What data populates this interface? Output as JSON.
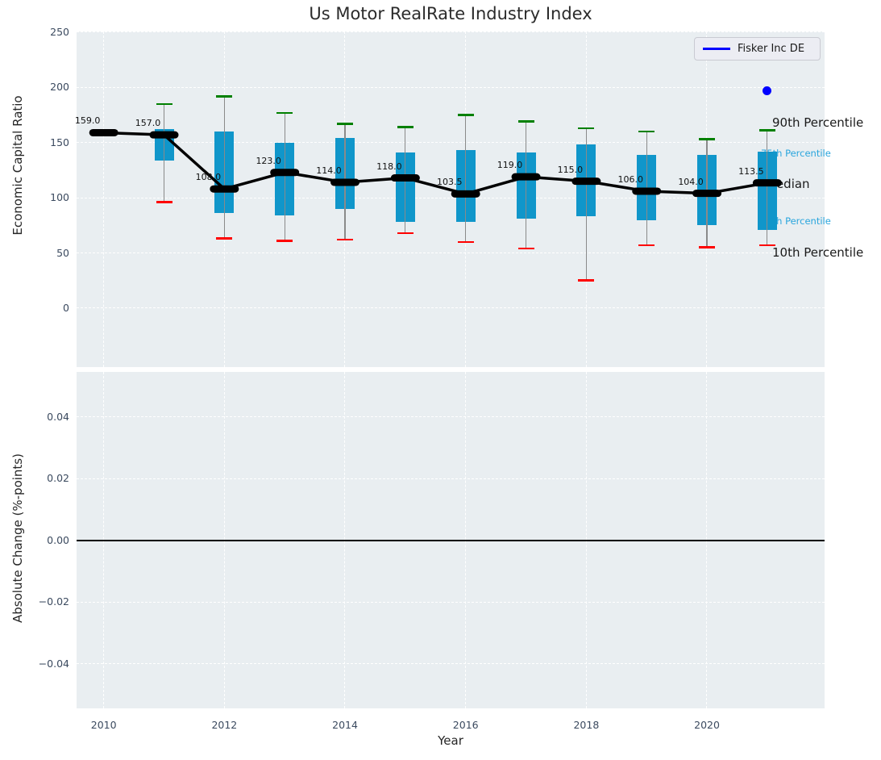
{
  "colors": {
    "box": "#1096ca",
    "whisker": "#8a8a8a",
    "cap_high": "#008000",
    "cap_low": "#ff0000",
    "median": "#000000",
    "highlight": "#0000ff",
    "panel_bg": "#e9eef1",
    "grid": "#ffffff",
    "tick_label": "#3b4a5f",
    "text": "#262626",
    "cyan_label": "#29a5dd",
    "legend_bg": "#ecedf3",
    "legend_border": "#c9cad2",
    "zero_line": "#000000"
  },
  "chart_data": [
    {
      "type": "box",
      "title": "Us Motor RealRate Industry Index",
      "ylabel": "Economic Capital Ratio",
      "xlabel": "Year",
      "grid": true,
      "legend": {
        "position": "upper right",
        "entries": [
          {
            "label": "Fisker Inc DE",
            "color": "#0000ff"
          }
        ]
      },
      "ylim": [
        -53.4,
        250.7
      ],
      "xlim": [
        2009.55,
        2021.95
      ],
      "yticks": [
        {
          "label": "250",
          "value": 250
        },
        {
          "label": "200",
          "value": 200
        },
        {
          "label": "150",
          "value": 150
        },
        {
          "label": "100",
          "value": 100
        },
        {
          "label": "50",
          "value": 50
        },
        {
          "label": "0",
          "value": 0
        }
      ],
      "xticks": [
        {
          "label": "2010",
          "value": 2010
        },
        {
          "label": "2012",
          "value": 2012
        },
        {
          "label": "2014",
          "value": 2014
        },
        {
          "label": "2016",
          "value": 2016
        },
        {
          "label": "2018",
          "value": 2018
        },
        {
          "label": "2020",
          "value": 2020
        }
      ],
      "boxes": [
        {
          "year": 2010,
          "p10": 157,
          "p25": 158,
          "median": 159,
          "p75": 160,
          "p90": 161.5,
          "label": "159.0"
        },
        {
          "year": 2011,
          "p10": 96,
          "p25": 134,
          "median": 157,
          "p75": 162,
          "p90": 185,
          "label": "157.0"
        },
        {
          "year": 2012,
          "p10": 63,
          "p25": 86,
          "median": 108,
          "p75": 160,
          "p90": 192,
          "label": "108.0"
        },
        {
          "year": 2013,
          "p10": 61,
          "p25": 84,
          "median": 123,
          "p75": 150,
          "p90": 177,
          "label": "123.0"
        },
        {
          "year": 2014,
          "p10": 62,
          "p25": 90,
          "median": 114,
          "p75": 154,
          "p90": 167,
          "label": "114.0"
        },
        {
          "year": 2015,
          "p10": 68,
          "p25": 78,
          "median": 118,
          "p75": 141,
          "p90": 164,
          "label": "118.0"
        },
        {
          "year": 2016,
          "p10": 60,
          "p25": 78,
          "median": 103.5,
          "p75": 143,
          "p90": 175,
          "label": "103.5"
        },
        {
          "year": 2017,
          "p10": 54,
          "p25": 81,
          "median": 119,
          "p75": 141,
          "p90": 169,
          "label": "119.0"
        },
        {
          "year": 2018,
          "p10": 25,
          "p25": 83,
          "median": 115,
          "p75": 148,
          "p90": 163,
          "label": "115.0"
        },
        {
          "year": 2019,
          "p10": 57,
          "p25": 80,
          "median": 106,
          "p75": 139,
          "p90": 160,
          "label": "106.0"
        },
        {
          "year": 2020,
          "p10": 55,
          "p25": 75,
          "median": 104,
          "p75": 139,
          "p90": 153,
          "label": "104.0"
        },
        {
          "year": 2021,
          "p10": 57,
          "p25": 71,
          "median": 113.5,
          "p75": 142,
          "p90": 161,
          "label": "113.5"
        }
      ],
      "highlight_point": {
        "series": "Fisker Inc DE",
        "year": 2021,
        "value": 197,
        "color": "#0000ff"
      },
      "percentile_labels": [
        {
          "text": "90th Percentile",
          "anchor_value": 161,
          "style": "large"
        },
        {
          "text": "75th Percentile",
          "anchor_value": 143,
          "style": "small"
        },
        {
          "text": "Median",
          "anchor_value": 113.5,
          "style": "large"
        },
        {
          "text": "25th Percentile",
          "anchor_value": 78,
          "style": "small"
        },
        {
          "text": "10th Percentile",
          "anchor_value": 57,
          "style": "large"
        }
      ]
    },
    {
      "type": "line",
      "ylabel": "Absolute Change (%-points)",
      "xlabel": "Year",
      "grid": true,
      "ylim": [
        -0.0545,
        0.0546
      ],
      "yticks": [
        {
          "label": "0.04",
          "value": 0.04
        },
        {
          "label": "0.02",
          "value": 0.02
        },
        {
          "label": "0.00",
          "value": 0.0
        },
        {
          "label": "−0.02",
          "value": -0.02
        },
        {
          "label": "−0.04",
          "value": -0.04
        }
      ],
      "zero_line": 0.0,
      "series": []
    }
  ]
}
